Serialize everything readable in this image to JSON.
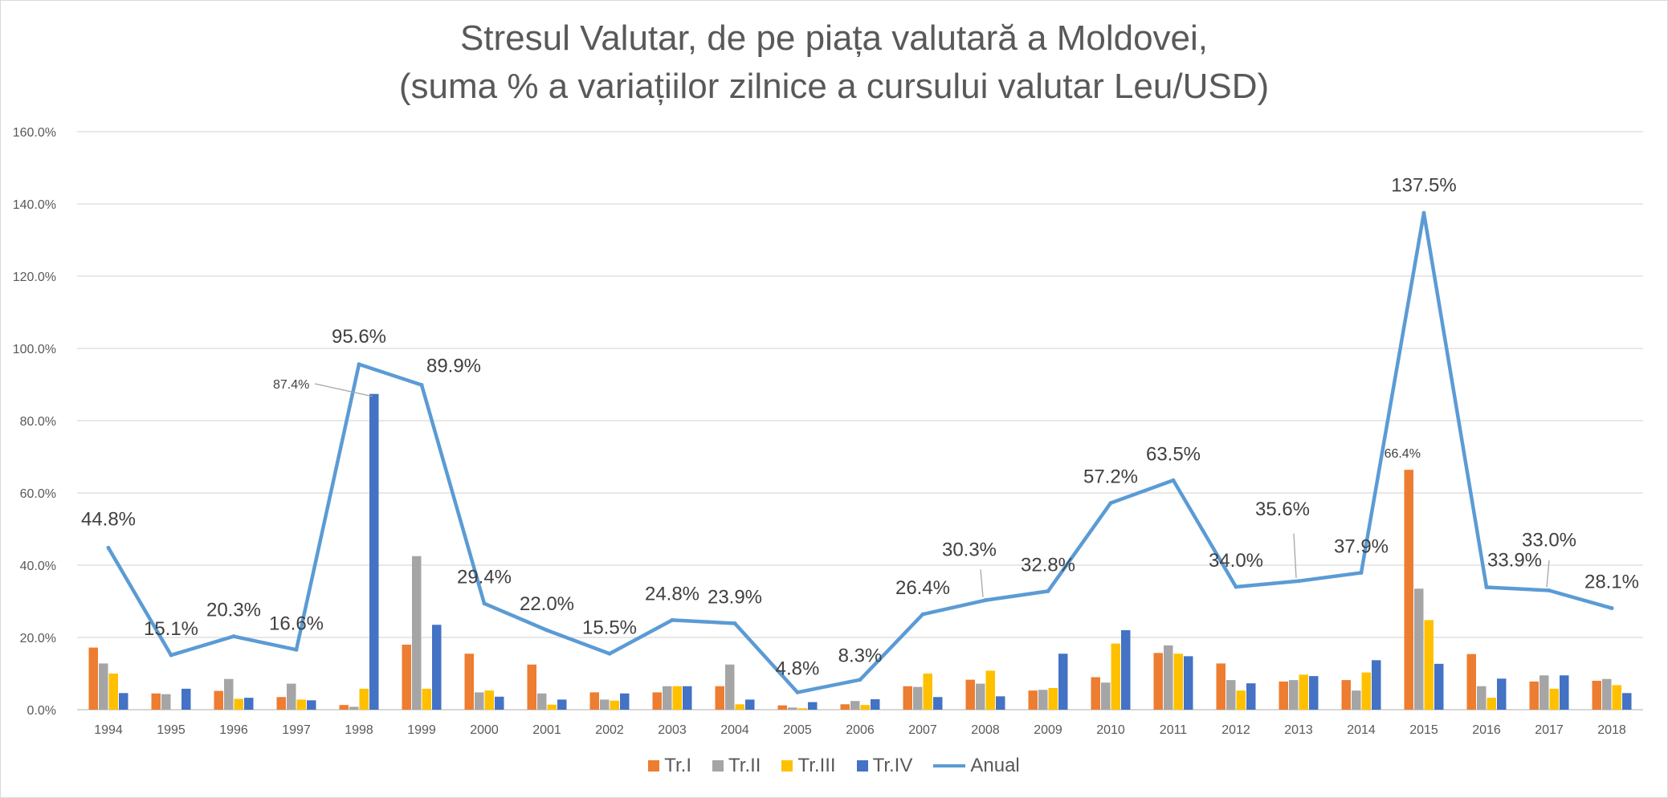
{
  "chart_data": {
    "type": "bar",
    "title_line1": "Stresul Valutar, de pe piața valutară a Moldovei,",
    "title_line2": "(suma % a variațiilor zilnice a cursului valutar Leu/USD)",
    "categories": [
      "1994",
      "1995",
      "1996",
      "1997",
      "1998",
      "1999",
      "2000",
      "2001",
      "2002",
      "2003",
      "2004",
      "2005",
      "2006",
      "2007",
      "2008",
      "2009",
      "2010",
      "2011",
      "2012",
      "2013",
      "2014",
      "2015",
      "2016",
      "2017",
      "2018"
    ],
    "ylim": [
      0,
      160
    ],
    "yticks": [
      "0.0%",
      "20.0%",
      "40.0%",
      "60.0%",
      "80.0%",
      "100.0%",
      "120.0%",
      "140.0%",
      "160.0%"
    ],
    "grid": true,
    "legend_position": "bottom",
    "series": [
      {
        "name": "Tr.I",
        "kind": "bar",
        "color": "#ED7D31",
        "values": [
          17.2,
          4.5,
          5.2,
          3.5,
          1.3,
          18.0,
          15.5,
          12.5,
          4.8,
          4.8,
          6.5,
          1.2,
          1.5,
          6.5,
          8.3,
          5.3,
          9.0,
          15.7,
          12.8,
          7.8,
          8.2,
          66.4,
          15.4,
          7.8,
          8.0
        ]
      },
      {
        "name": "Tr.II",
        "kind": "bar",
        "color": "#A5A5A5",
        "values": [
          12.8,
          4.3,
          8.5,
          7.2,
          0.8,
          42.5,
          4.8,
          4.5,
          2.8,
          6.5,
          12.5,
          0.6,
          2.4,
          6.3,
          7.2,
          5.5,
          7.5,
          17.8,
          8.2,
          8.2,
          5.3,
          33.5,
          6.5,
          9.5,
          8.5
        ]
      },
      {
        "name": "Tr.III",
        "kind": "bar",
        "color": "#FFC000",
        "values": [
          10.0,
          0.0,
          3.0,
          2.8,
          5.8,
          5.8,
          5.3,
          1.4,
          2.5,
          6.5,
          1.5,
          0.4,
          1.3,
          10.0,
          10.8,
          6.0,
          18.3,
          15.5,
          5.3,
          9.7,
          10.3,
          24.8,
          3.3,
          5.8,
          6.8
        ]
      },
      {
        "name": "Tr.IV",
        "kind": "bar",
        "color": "#4472C4",
        "values": [
          4.6,
          5.8,
          3.3,
          2.6,
          87.4,
          23.5,
          3.6,
          2.8,
          4.5,
          6.5,
          2.8,
          2.1,
          2.9,
          3.5,
          3.7,
          15.5,
          22.0,
          14.8,
          7.3,
          9.3,
          13.7,
          12.7,
          8.6,
          9.5,
          4.6
        ]
      },
      {
        "name": "Anual",
        "kind": "line",
        "color": "#5B9BD5",
        "values": [
          44.8,
          15.1,
          20.3,
          16.6,
          95.6,
          89.9,
          29.4,
          22.0,
          15.5,
          24.8,
          23.9,
          4.8,
          8.3,
          26.4,
          30.3,
          32.8,
          57.2,
          63.5,
          34.0,
          35.6,
          37.9,
          137.5,
          33.9,
          33.0,
          28.1
        ],
        "labels": [
          "44.8%",
          "15.1%",
          "20.3%",
          "16.6%",
          "95.6%",
          "89.9%",
          "29.4%",
          "22.0%",
          "15.5%",
          "24.8%",
          "23.9%",
          "4.8%",
          "8.3%",
          "26.4%",
          "30.3%",
          "32.8%",
          "57.2%",
          "63.5%",
          "34.0%",
          "35.6%",
          "37.9%",
          "137.5%",
          "33.9%",
          "33.0%",
          "28.1%"
        ]
      }
    ],
    "bar_annotations": [
      {
        "series": "Tr.IV",
        "category": "1998",
        "label": "87.4%"
      },
      {
        "series": "Tr.I",
        "category": "2015",
        "label": "66.4%"
      }
    ]
  }
}
